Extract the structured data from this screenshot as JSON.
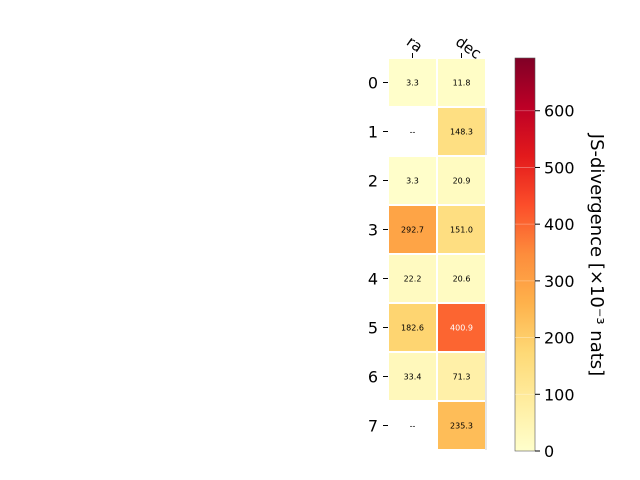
{
  "chart_data": {
    "type": "heatmap",
    "columns": [
      "ra",
      "dec"
    ],
    "rows": [
      "0",
      "1",
      "2",
      "3",
      "4",
      "5",
      "6",
      "7"
    ],
    "values": [
      [
        3.3,
        11.8
      ],
      [
        null,
        148.3
      ],
      [
        3.3,
        20.9
      ],
      [
        292.7,
        151.0
      ],
      [
        22.2,
        20.6
      ],
      [
        182.6,
        400.9
      ],
      [
        33.4,
        71.3
      ],
      [
        null,
        235.3
      ]
    ],
    "cell_labels": [
      [
        "3.3",
        "11.8"
      ],
      [
        "--",
        "148.3"
      ],
      [
        "3.3",
        "20.9"
      ],
      [
        "292.7",
        "151.0"
      ],
      [
        "22.2",
        "20.6"
      ],
      [
        "182.6",
        "400.9"
      ],
      [
        "33.4",
        "71.3"
      ],
      [
        "--",
        "235.3"
      ]
    ],
    "colorbar": {
      "label": "JS-divergence [×10⁻³ nats]",
      "ticks": [
        "0",
        "100",
        "200",
        "300",
        "400",
        "500",
        "600"
      ],
      "tick_values": [
        0,
        100,
        200,
        300,
        400,
        500,
        600
      ],
      "range": [
        0,
        693
      ],
      "colormap": "YlOrRd"
    },
    "grid": false,
    "legend": "colorbar-right"
  }
}
